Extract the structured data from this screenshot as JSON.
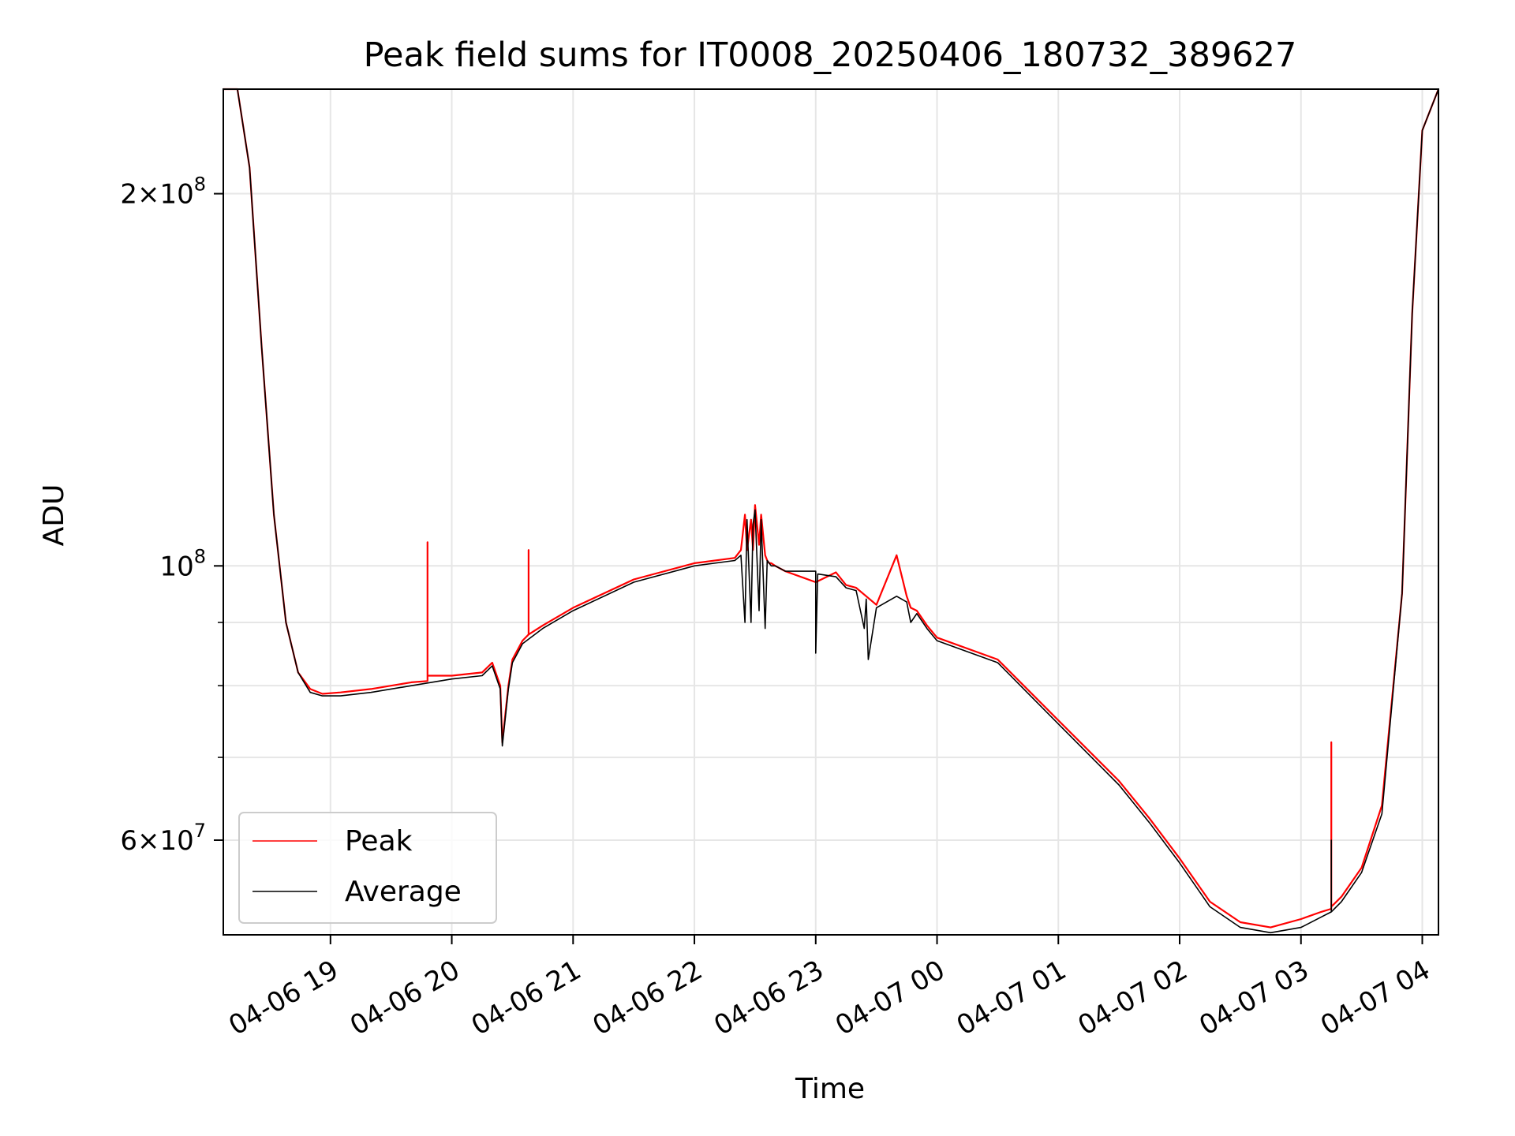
{
  "chart_data": {
    "type": "line",
    "title": "Peak field sums for IT0008_20250406_180732_389627",
    "xlabel": "Time",
    "ylabel": "ADU",
    "y_scale": "log",
    "ylim": [
      50300000,
      243000000
    ],
    "xlim": [
      "2025-04-06 18:07",
      "2025-04-07 04:08"
    ],
    "grid": true,
    "legend_position": "lower-left",
    "x_ticks": [
      {
        "t": "2025-04-06 19:00",
        "label": "04-06 19"
      },
      {
        "t": "2025-04-06 20:00",
        "label": "04-06 20"
      },
      {
        "t": "2025-04-06 21:00",
        "label": "04-06 21"
      },
      {
        "t": "2025-04-06 22:00",
        "label": "04-06 22"
      },
      {
        "t": "2025-04-06 23:00",
        "label": "04-06 23"
      },
      {
        "t": "2025-04-07 00:00",
        "label": "04-07 00"
      },
      {
        "t": "2025-04-07 01:00",
        "label": "04-07 01"
      },
      {
        "t": "2025-04-07 02:00",
        "label": "04-07 02"
      },
      {
        "t": "2025-04-07 03:00",
        "label": "04-07 03"
      },
      {
        "t": "2025-04-07 04:00",
        "label": "04-07 04"
      }
    ],
    "y_ticks_major": [
      {
        "value": 60000000,
        "mant": "6",
        "exp": "7"
      },
      {
        "value": 100000000,
        "mant": "",
        "exp": "8"
      },
      {
        "value": 200000000,
        "mant": "2",
        "exp": "8"
      }
    ],
    "y_ticks_minor": [
      50000000,
      70000000,
      80000000,
      90000000
    ],
    "series": [
      {
        "name": "Peak",
        "color": "#ff0000",
        "x": [
          "2025-04-06 18:07",
          "2025-04-06 18:14",
          "2025-04-06 18:20",
          "2025-04-06 18:26",
          "2025-04-06 18:32",
          "2025-04-06 18:38",
          "2025-04-06 18:44",
          "2025-04-06 18:50",
          "2025-04-06 18:56",
          "2025-04-06 19:05",
          "2025-04-06 19:20",
          "2025-04-06 19:40",
          "2025-04-06 19:48",
          "2025-04-06 19:48",
          "2025-04-06 19:48",
          "2025-04-06 20:00",
          "2025-04-06 20:15",
          "2025-04-06 20:20",
          "2025-04-06 20:24",
          "2025-04-06 20:25",
          "2025-04-06 20:28",
          "2025-04-06 20:30",
          "2025-04-06 20:35",
          "2025-04-06 20:38",
          "2025-04-06 20:38",
          "2025-04-06 20:38",
          "2025-04-06 20:45",
          "2025-04-06 21:00",
          "2025-04-06 21:30",
          "2025-04-06 22:00",
          "2025-04-06 22:20",
          "2025-04-06 22:23",
          "2025-04-06 22:25",
          "2025-04-06 22:26",
          "2025-04-06 22:28",
          "2025-04-06 22:29",
          "2025-04-06 22:30",
          "2025-04-06 22:32",
          "2025-04-06 22:33",
          "2025-04-06 22:35",
          "2025-04-06 22:36",
          "2025-04-06 22:37",
          "2025-04-06 22:38",
          "2025-04-06 22:40",
          "2025-04-06 22:45",
          "2025-04-06 23:00",
          "2025-04-06 23:10",
          "2025-04-06 23:15",
          "2025-04-06 23:20",
          "2025-04-06 23:25",
          "2025-04-06 23:30",
          "2025-04-06 23:40",
          "2025-04-06 23:45",
          "2025-04-06 23:47",
          "2025-04-06 23:50",
          "2025-04-06 23:52",
          "2025-04-06 23:55",
          "2025-04-07 00:00",
          "2025-04-07 00:30",
          "2025-04-07 01:00",
          "2025-04-07 01:30",
          "2025-04-07 01:45",
          "2025-04-07 02:00",
          "2025-04-07 02:15",
          "2025-04-07 02:30",
          "2025-04-07 02:45",
          "2025-04-07 03:00",
          "2025-04-07 03:10",
          "2025-04-07 03:15",
          "2025-04-07 03:15",
          "2025-04-07 03:15",
          "2025-04-07 03:20",
          "2025-04-07 03:30",
          "2025-04-07 03:40",
          "2025-04-07 03:50",
          "2025-04-07 03:55",
          "2025-04-07 04:00",
          "2025-04-07 04:08"
        ],
        "values": [
          243000000,
          243000000,
          210000000,
          150000000,
          110000000,
          90000000,
          82000000,
          79500000,
          78800000,
          79000000,
          79500000,
          80500000,
          80700000,
          104500000,
          81500000,
          81500000,
          82000000,
          83500000,
          80000000,
          72000000,
          80000000,
          84000000,
          87000000,
          88000000,
          103000000,
          88000000,
          89500000,
          92500000,
          97500000,
          100500000,
          101500000,
          103000000,
          110000000,
          103000000,
          109000000,
          103000000,
          112000000,
          104000000,
          110000000,
          102000000,
          101000000,
          100500000,
          100500000,
          100000000,
          99000000,
          97000000,
          98800000,
          96500000,
          96000000,
          94500000,
          93000000,
          102000000,
          94500000,
          92500000,
          92000000,
          91000000,
          89500000,
          87500000,
          84000000,
          75000000,
          67000000,
          62500000,
          58000000,
          53500000,
          51500000,
          51000000,
          51800000,
          52500000,
          52800000,
          72000000,
          53000000,
          54000000,
          57000000,
          64000000,
          95000000,
          160000000,
          225000000,
          243000000
        ]
      },
      {
        "name": "Average",
        "color": "#000000",
        "x": [
          "2025-04-06 18:07",
          "2025-04-06 18:14",
          "2025-04-06 18:20",
          "2025-04-06 18:26",
          "2025-04-06 18:32",
          "2025-04-06 18:38",
          "2025-04-06 18:44",
          "2025-04-06 18:50",
          "2025-04-06 18:56",
          "2025-04-06 19:05",
          "2025-04-06 19:20",
          "2025-04-06 19:40",
          "2025-04-06 20:00",
          "2025-04-06 20:15",
          "2025-04-06 20:20",
          "2025-04-06 20:24",
          "2025-04-06 20:25",
          "2025-04-06 20:28",
          "2025-04-06 20:30",
          "2025-04-06 20:35",
          "2025-04-06 20:45",
          "2025-04-06 21:00",
          "2025-04-06 21:30",
          "2025-04-06 22:00",
          "2025-04-06 22:20",
          "2025-04-06 22:23",
          "2025-04-06 22:25",
          "2025-04-06 22:26",
          "2025-04-06 22:28",
          "2025-04-06 22:29",
          "2025-04-06 22:30",
          "2025-04-06 22:32",
          "2025-04-06 22:33",
          "2025-04-06 22:35",
          "2025-04-06 22:36",
          "2025-04-06 22:37",
          "2025-04-06 22:38",
          "2025-04-06 22:40",
          "2025-04-06 22:45",
          "2025-04-06 23:00",
          "2025-04-06 23:00",
          "2025-04-06 23:01",
          "2025-04-06 23:10",
          "2025-04-06 23:15",
          "2025-04-06 23:20",
          "2025-04-06 23:24",
          "2025-04-06 23:25",
          "2025-04-06 23:26",
          "2025-04-06 23:30",
          "2025-04-06 23:40",
          "2025-04-06 23:45",
          "2025-04-06 23:47",
          "2025-04-06 23:50",
          "2025-04-06 23:52",
          "2025-04-06 23:55",
          "2025-04-07 00:00",
          "2025-04-07 00:30",
          "2025-04-07 01:00",
          "2025-04-07 01:30",
          "2025-04-07 01:45",
          "2025-04-07 02:00",
          "2025-04-07 02:15",
          "2025-04-07 02:30",
          "2025-04-07 02:45",
          "2025-04-07 03:00",
          "2025-04-07 03:10",
          "2025-04-07 03:15",
          "2025-04-07 03:15",
          "2025-04-07 03:15",
          "2025-04-07 03:20",
          "2025-04-07 03:30",
          "2025-04-07 03:40",
          "2025-04-07 03:50",
          "2025-04-07 03:55",
          "2025-04-07 04:00",
          "2025-04-07 04:08"
        ],
        "values": [
          243000000,
          243000000,
          210000000,
          150000000,
          110000000,
          90000000,
          82000000,
          79000000,
          78500000,
          78500000,
          79000000,
          80000000,
          81000000,
          81500000,
          83000000,
          79500000,
          71500000,
          79500000,
          83500000,
          86500000,
          89000000,
          92000000,
          97000000,
          100000000,
          101000000,
          102000000,
          90000000,
          109000000,
          90000000,
          108000000,
          111000000,
          92000000,
          109000000,
          89000000,
          101000000,
          100500000,
          100000000,
          100000000,
          99000000,
          99000000,
          85000000,
          98500000,
          98000000,
          96000000,
          95500000,
          89000000,
          94000000,
          84000000,
          92500000,
          94500000,
          93500000,
          90000000,
          91500000,
          90500000,
          89000000,
          87000000,
          83500000,
          74500000,
          66500000,
          62000000,
          57500000,
          53000000,
          51000000,
          50500000,
          51000000,
          52000000,
          52500000,
          60000000,
          52500000,
          53500000,
          56500000,
          63000000,
          95000000,
          160000000,
          225000000,
          243000000
        ]
      }
    ]
  }
}
